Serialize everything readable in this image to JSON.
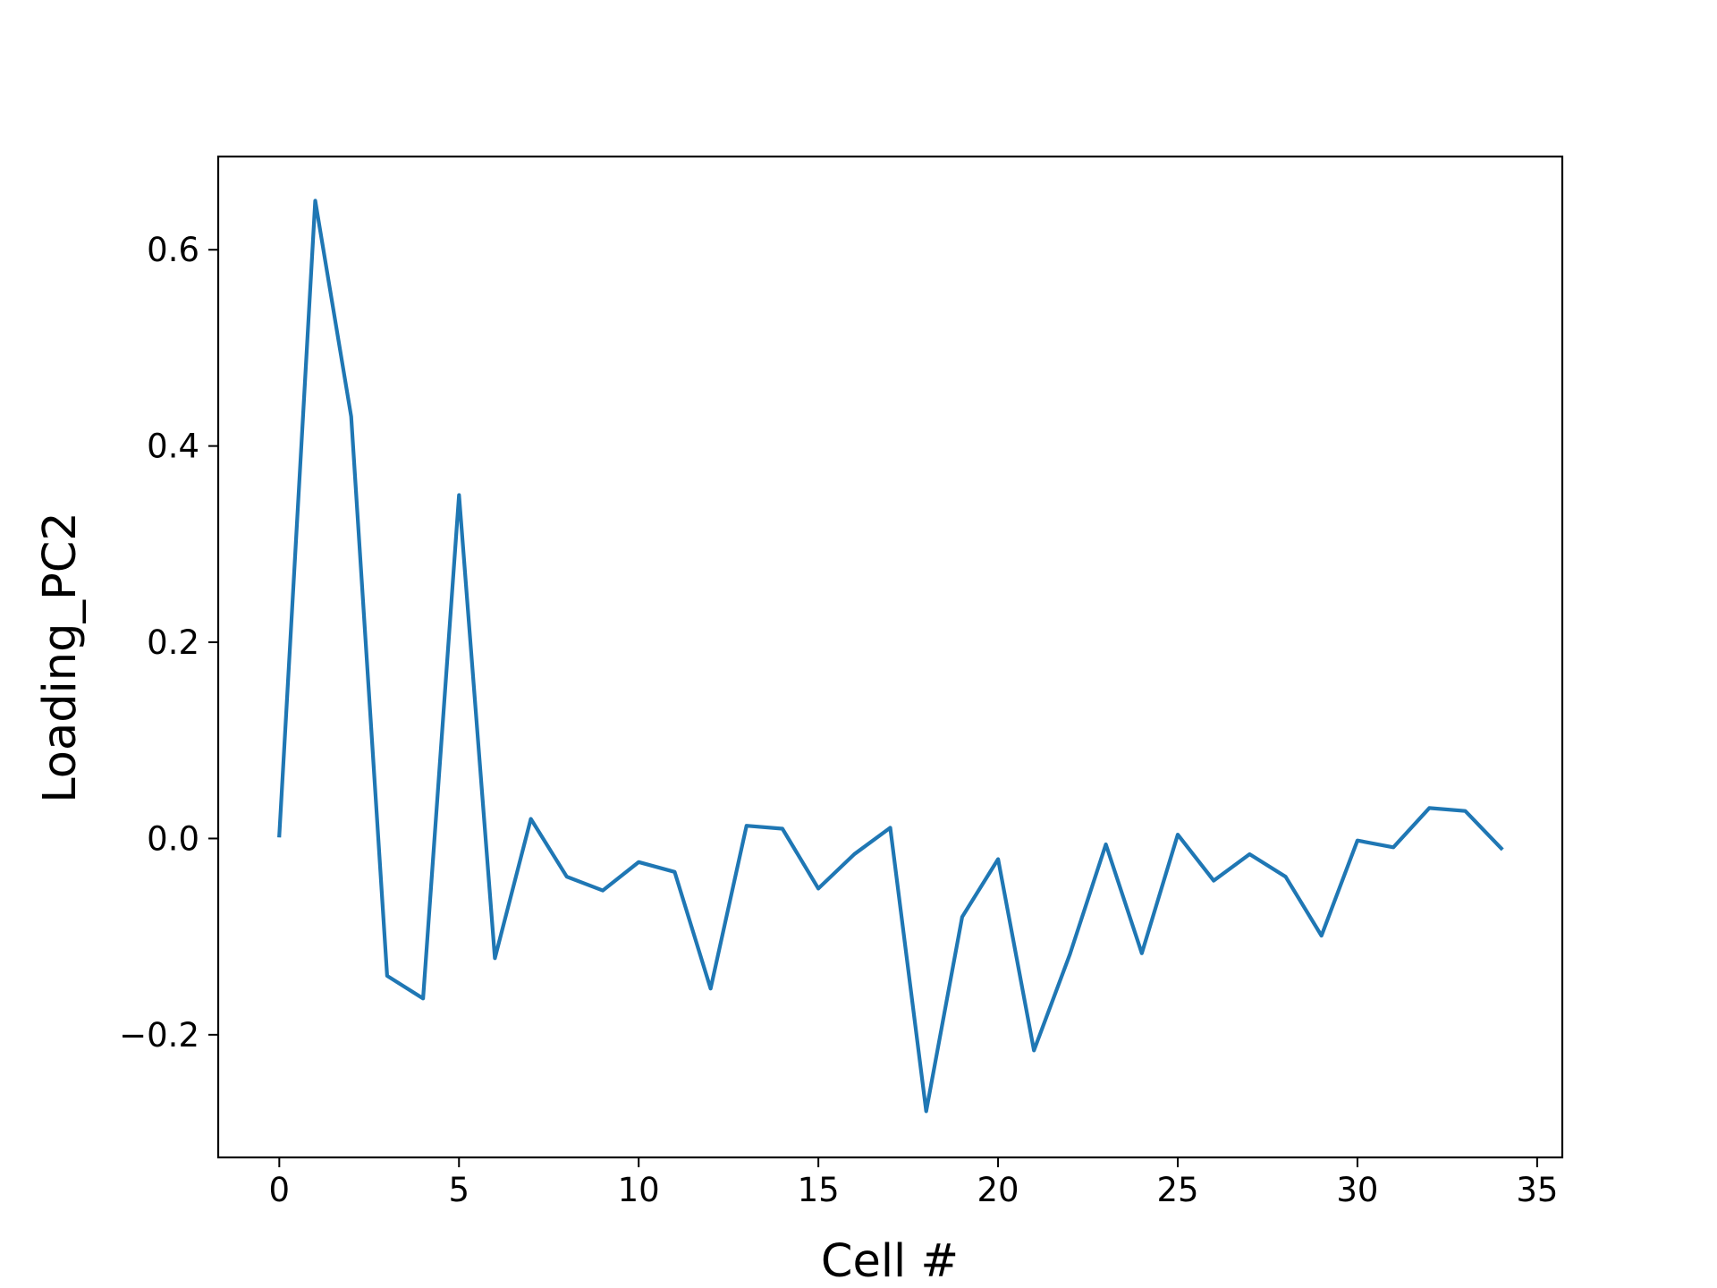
{
  "chart_data": {
    "type": "line",
    "title": "",
    "xlabel": "Cell #",
    "ylabel": "Loading_PC2",
    "xlim": [
      -1.7,
      35.7
    ],
    "ylim": [
      -0.325,
      0.695
    ],
    "xticks": [
      0,
      5,
      10,
      15,
      20,
      25,
      30,
      35
    ],
    "xtick_labels": [
      "0",
      "5",
      "10",
      "15",
      "20",
      "25",
      "30",
      "35"
    ],
    "yticks": [
      -0.2,
      0.0,
      0.2,
      0.4,
      0.6
    ],
    "ytick_labels": [
      "−0.2",
      "0.0",
      "0.2",
      "0.4",
      "0.6"
    ],
    "grid": false,
    "series": [
      {
        "color": "#1f77b4",
        "x": [
          0,
          1,
          2,
          3,
          4,
          5,
          6,
          7,
          8,
          9,
          10,
          11,
          12,
          13,
          14,
          15,
          16,
          17,
          18,
          19,
          20,
          21,
          22,
          23,
          24,
          25,
          26,
          27,
          28,
          29,
          30,
          31,
          32,
          33,
          34
        ],
        "y": [
          0.003,
          0.65,
          0.43,
          -0.14,
          -0.163,
          0.35,
          -0.122,
          0.02,
          -0.039,
          -0.053,
          -0.024,
          -0.034,
          -0.153,
          0.013,
          0.01,
          -0.051,
          -0.016,
          0.011,
          -0.278,
          -0.08,
          -0.021,
          -0.216,
          -0.118,
          -0.006,
          -0.117,
          0.004,
          -0.043,
          -0.016,
          -0.039,
          -0.099,
          -0.002,
          -0.009,
          0.031,
          0.028,
          -0.01
        ]
      }
    ]
  }
}
